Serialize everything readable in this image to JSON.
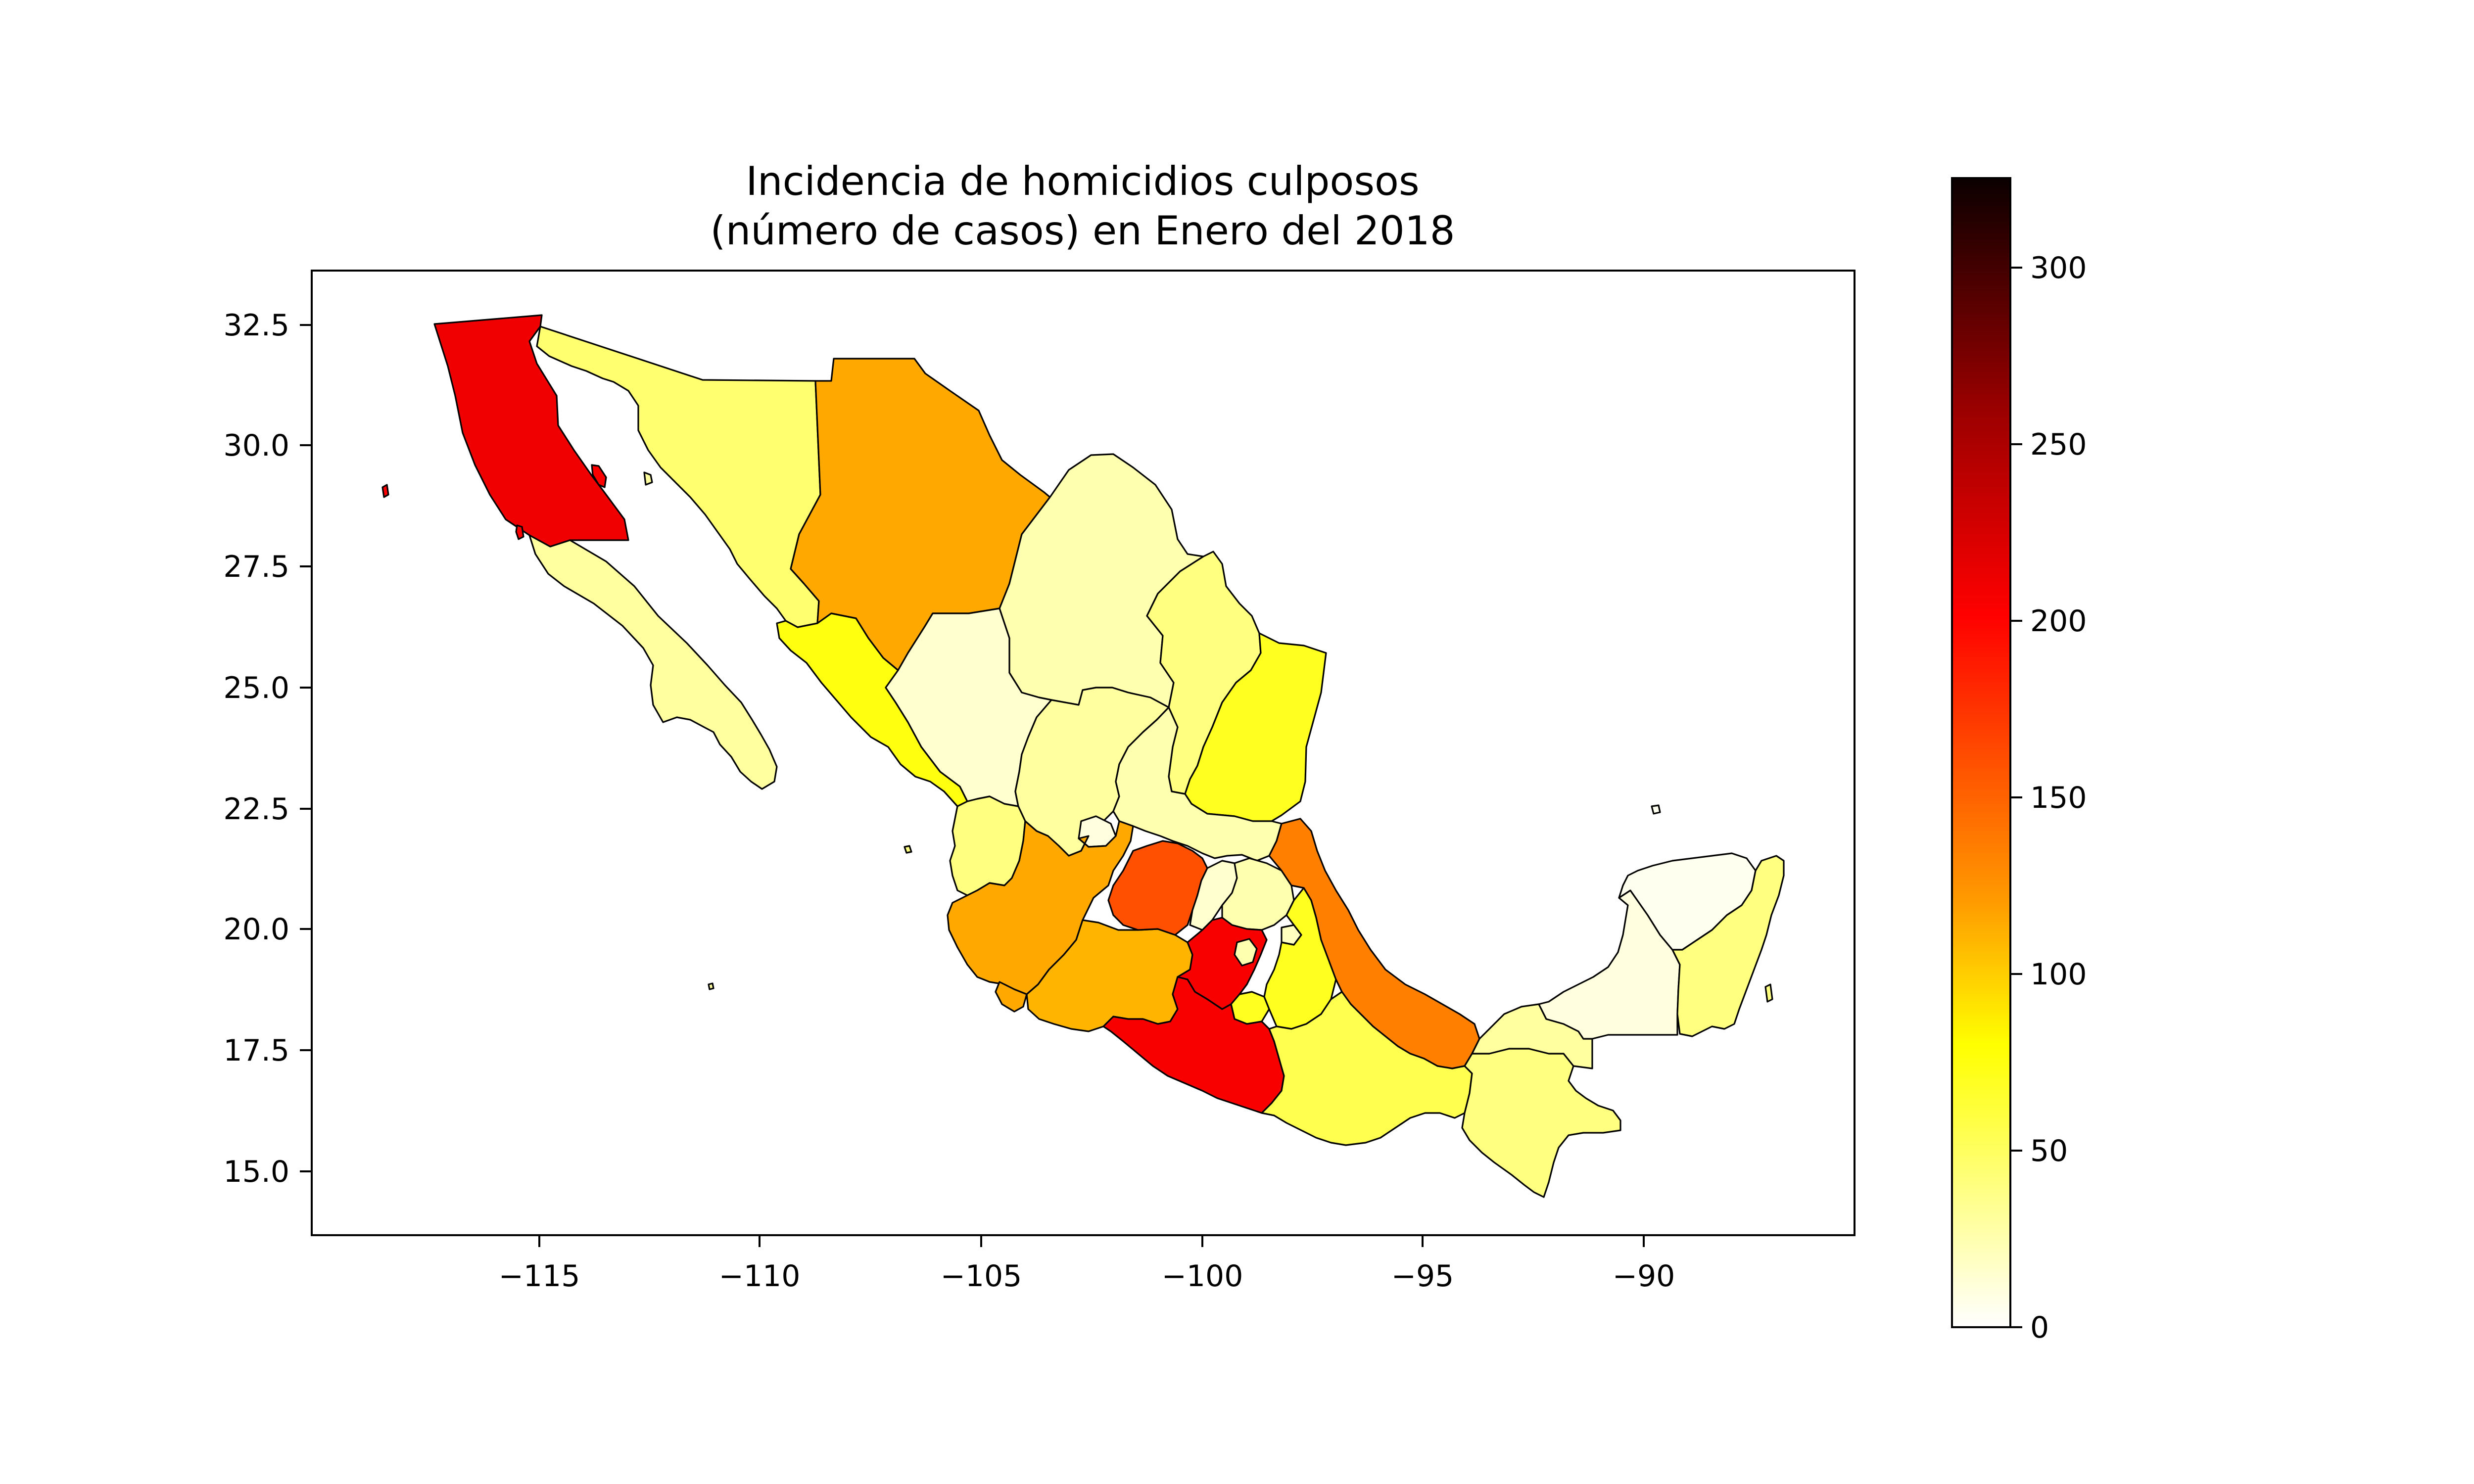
{
  "chart_data": {
    "type": "choropleth-map",
    "title_line1": "Incidencia de homicidios culposos",
    "title_line2": "(número de casos) en Enero del 2018",
    "x_axis": {
      "ticks": [
        -115,
        -110,
        -105,
        -100,
        -95,
        -90
      ],
      "tick_labels": [
        "−115",
        "−110",
        "−105",
        "−100",
        "−95",
        "−90"
      ],
      "range": [
        -119.6,
        -84.9
      ]
    },
    "y_axis": {
      "ticks": [
        15.0,
        17.5,
        20.0,
        22.5,
        25.0,
        27.5,
        30.0,
        32.5
      ],
      "tick_labels": [
        "15.0",
        "17.5",
        "20.0",
        "22.5",
        "25.0",
        "27.5",
        "30.0",
        "32.5"
      ],
      "range": [
        13.6,
        33.6
      ]
    },
    "colorbar": {
      "colormap": "hot_r",
      "min": 0,
      "max": 325,
      "ticks": [
        0,
        50,
        100,
        150,
        200,
        250,
        300
      ],
      "tick_labels": [
        "0",
        "50",
        "100",
        "150",
        "200",
        "250",
        "300"
      ]
    },
    "states": [
      {
        "name": "Baja California",
        "value": 210
      },
      {
        "name": "Baja California Sur",
        "value": 30
      },
      {
        "name": "Sonora",
        "value": 45
      },
      {
        "name": "Chihuahua",
        "value": 115
      },
      {
        "name": "Coahuila",
        "value": 25
      },
      {
        "name": "Nuevo León",
        "value": 40
      },
      {
        "name": "Tamaulipas",
        "value": 70
      },
      {
        "name": "Sinaloa",
        "value": 75
      },
      {
        "name": "Durango",
        "value": 15
      },
      {
        "name": "Zacatecas",
        "value": 30
      },
      {
        "name": "San Luis Potosí",
        "value": 25
      },
      {
        "name": "Nayarit",
        "value": 40
      },
      {
        "name": "Aguascalientes",
        "value": 10
      },
      {
        "name": "Jalisco",
        "value": 115
      },
      {
        "name": "Colima",
        "value": 115
      },
      {
        "name": "Michoacán",
        "value": 110
      },
      {
        "name": "Guanajuato",
        "value": 160
      },
      {
        "name": "Querétaro",
        "value": 15
      },
      {
        "name": "Hidalgo",
        "value": 25
      },
      {
        "name": "México",
        "value": 205
      },
      {
        "name": "Ciudad de México",
        "value": 25
      },
      {
        "name": "Morelos",
        "value": 70
      },
      {
        "name": "Tlaxcala",
        "value": 20
      },
      {
        "name": "Puebla",
        "value": 70
      },
      {
        "name": "Veracruz",
        "value": 135
      },
      {
        "name": "Guerrero",
        "value": 205
      },
      {
        "name": "Oaxaca",
        "value": 55
      },
      {
        "name": "Chiapas",
        "value": 40
      },
      {
        "name": "Tabasco",
        "value": 30
      },
      {
        "name": "Campeche",
        "value": 10
      },
      {
        "name": "Yucatán",
        "value": 5
      },
      {
        "name": "Quintana Roo",
        "value": 40
      }
    ]
  }
}
